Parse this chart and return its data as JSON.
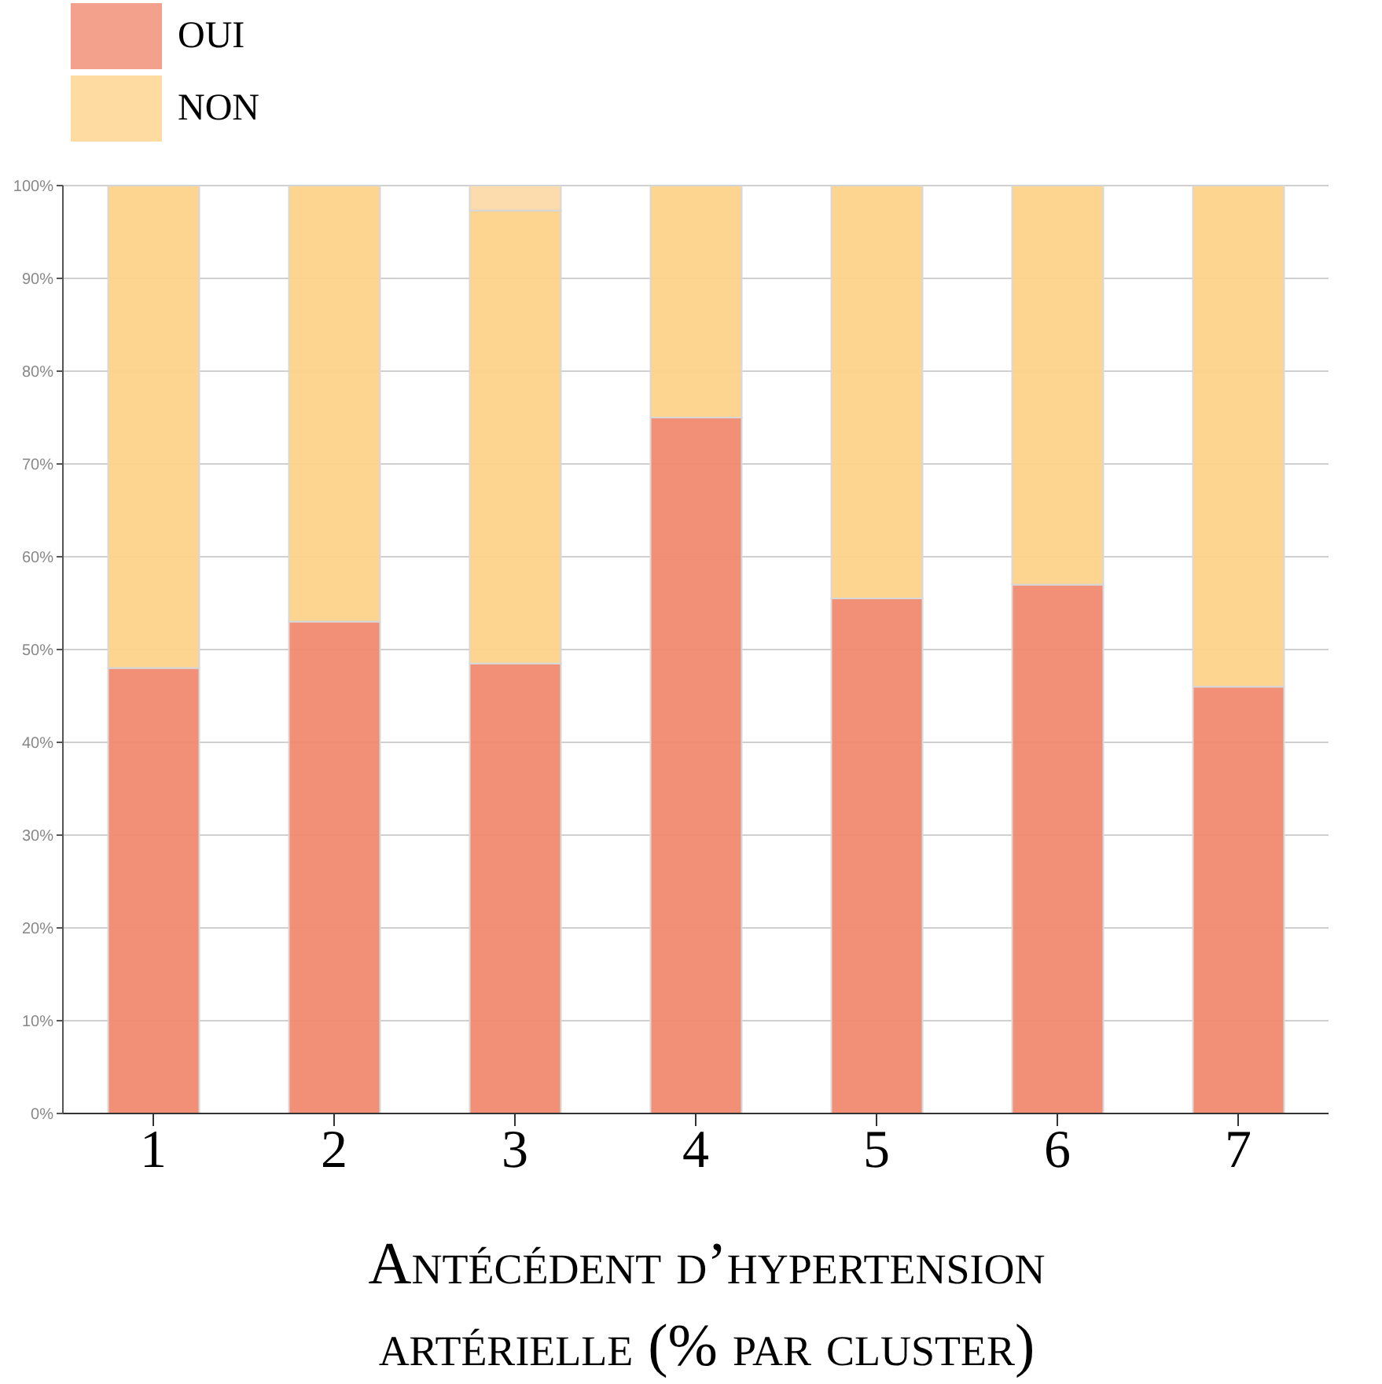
{
  "chart_data": {
    "type": "bar",
    "stacked": true,
    "xlabel": "Antécédent d’hypertension artérielle (% par cluster)",
    "categories": [
      "1",
      "2",
      "3",
      "4",
      "5",
      "6",
      "7"
    ],
    "series": [
      {
        "name": "OUI",
        "color": "#f08a70",
        "values": [
          48,
          53,
          48.5,
          75,
          55.5,
          57,
          46
        ]
      },
      {
        "name": "NON",
        "color": "#fdd28a",
        "values": [
          52,
          47,
          48.8,
          25,
          44.5,
          43,
          54
        ]
      },
      {
        "color": "#fcd9a8",
        "values": [
          null,
          null,
          2.7,
          null,
          null,
          null,
          null
        ]
      }
    ],
    "ylim": [
      0,
      100
    ],
    "yticks": [
      {
        "value": 0,
        "label": "0%"
      },
      {
        "value": 10,
        "label": "10%"
      },
      {
        "value": 20,
        "label": "20%"
      },
      {
        "value": 30,
        "label": "30%"
      },
      {
        "value": 40,
        "label": "40%"
      },
      {
        "value": 50,
        "label": "50%"
      },
      {
        "value": 60,
        "label": "60%"
      },
      {
        "value": 70,
        "label": "70%"
      },
      {
        "value": 80,
        "label": "80%"
      },
      {
        "value": 90,
        "label": "90%"
      },
      {
        "value": 100,
        "label": "100%"
      }
    ],
    "grid": "y",
    "legend": "top left"
  }
}
